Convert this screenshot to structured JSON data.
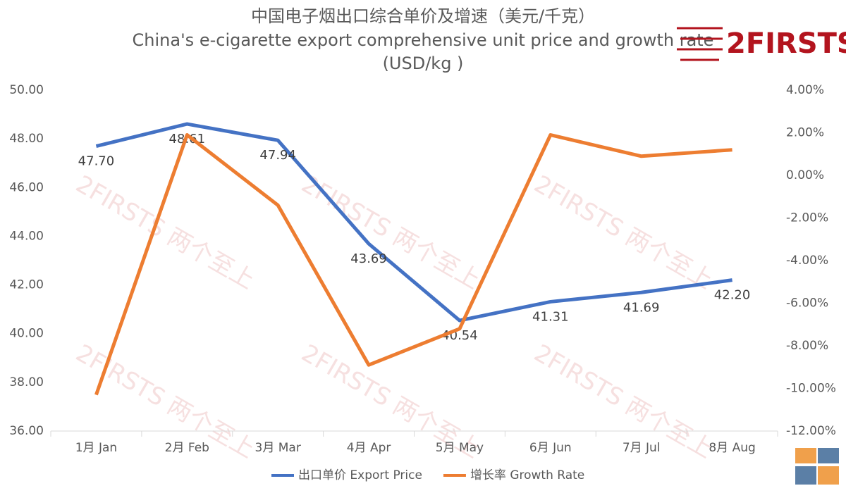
{
  "chart_data": {
    "type": "line",
    "title": "中国电子烟出口综合单价及增速（美元/千克）",
    "subtitle": "China's e-cigarette export comprehensive unit price and growth rate",
    "unit_note": "(USD/kg )",
    "logo": "2FIRSTS",
    "watermark": "2FIRSTS 两个至上",
    "categories": [
      "1月 Jan",
      "2月 Feb",
      "3月 Mar",
      "4月 Apr",
      "5月 May",
      "6月 Jun",
      "7月 Jul",
      "8月 Aug"
    ],
    "series": [
      {
        "name": "出口单价 Export Price",
        "color": "#4472c4",
        "values": [
          47.7,
          48.61,
          47.94,
          43.69,
          40.54,
          41.31,
          41.69,
          42.2
        ],
        "value_labels": [
          "47.70",
          "48.61",
          "47.94",
          "43.69",
          "40.54",
          "41.31",
          "41.69",
          "42.20"
        ]
      },
      {
        "name": "增长率 Growth Rate",
        "color": "#ed7d31",
        "axis": "y2",
        "values": [
          -10.3,
          1.9,
          -1.4,
          -8.9,
          -7.2,
          1.9,
          0.9,
          1.2
        ]
      }
    ],
    "ylim": [
      36,
      50
    ],
    "yticks": [
      {
        "value": 36,
        "label": "36.00"
      },
      {
        "value": 38,
        "label": "38.00"
      },
      {
        "value": 40,
        "label": "40.00"
      },
      {
        "value": 42,
        "label": "42.00"
      },
      {
        "value": 44,
        "label": "44.00"
      },
      {
        "value": 46,
        "label": "46.00"
      },
      {
        "value": 48,
        "label": "48.00"
      },
      {
        "value": 50,
        "label": "50.00"
      }
    ],
    "y2lim": [
      -12,
      4
    ],
    "y2ticks": [
      {
        "value": -12,
        "label": "-12.00%"
      },
      {
        "value": -10,
        "label": "-10.00%"
      },
      {
        "value": -8,
        "label": "-8.00%"
      },
      {
        "value": -6,
        "label": "-6.00%"
      },
      {
        "value": -4,
        "label": "-4.00%"
      },
      {
        "value": -2,
        "label": "-2.00%"
      },
      {
        "value": 0,
        "label": "0.00%"
      },
      {
        "value": 2,
        "label": "2.00%"
      },
      {
        "value": 4,
        "label": "4.00%"
      }
    ],
    "grid": false,
    "legend": "bottom"
  }
}
